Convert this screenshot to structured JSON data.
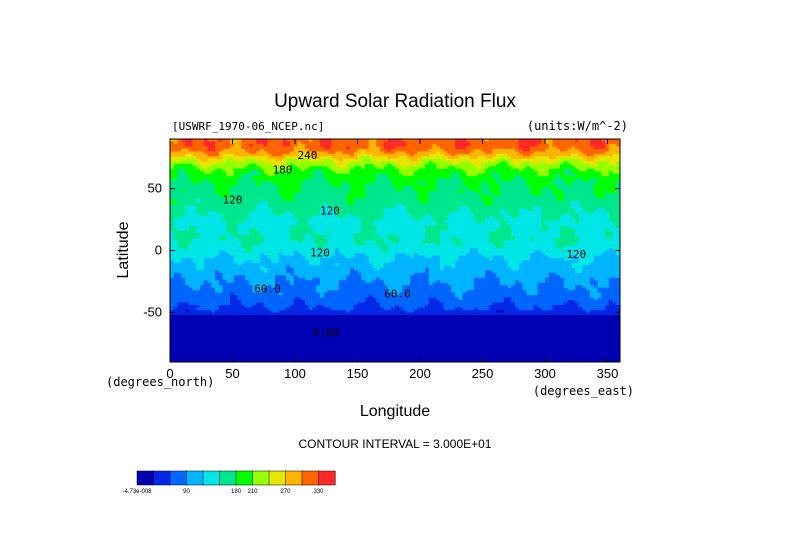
{
  "chart_data": {
    "type": "heatmap",
    "title": "Upward Solar Radiation Flux",
    "file_label": "[USWRF_1970-06_NCEP.nc]",
    "units_label": "(units:W/m^-2)",
    "xlabel": "Longitude",
    "ylabel": "Latitude",
    "x_units": "(degrees_east)",
    "y_units": "(degrees_north)",
    "xlim": [
      0,
      360
    ],
    "ylim": [
      -90,
      90
    ],
    "x_ticks": [
      "0",
      "50",
      "100",
      "150",
      "200",
      "250",
      "300",
      "350"
    ],
    "y_ticks": [
      "50",
      "0",
      "-50"
    ],
    "contour_interval": "CONTOUR INTERVAL = 3.000E+01",
    "contour_labels": [
      {
        "text": "240",
        "lon": 110,
        "lat": 74
      },
      {
        "text": "180",
        "lon": 90,
        "lat": 62
      },
      {
        "text": "120",
        "lon": 50,
        "lat": 38
      },
      {
        "text": "120",
        "lon": 128,
        "lat": 29
      },
      {
        "text": "120",
        "lon": 120,
        "lat": -5
      },
      {
        "text": "120",
        "lon": 325,
        "lat": -6
      },
      {
        "text": "60.0",
        "lon": 78,
        "lat": -34
      },
      {
        "text": "60.0",
        "lon": 182,
        "lat": -38
      },
      {
        "text": "0.00",
        "lon": 125,
        "lat": -69
      }
    ],
    "color_bar": {
      "colors": [
        "#0000b4",
        "#0028e6",
        "#0066ff",
        "#00b4ff",
        "#00e6e6",
        "#00e68c",
        "#00ff00",
        "#96ff00",
        "#e6e600",
        "#ffb400",
        "#ff6400",
        "#ff2828"
      ],
      "tick_labels": [
        "-4.73e-008",
        "90",
        "180",
        "210",
        "270",
        "330"
      ],
      "tick_values": [
        0,
        90,
        180,
        210,
        270,
        330
      ],
      "range": [
        0,
        360
      ]
    },
    "latitude_profile": [
      {
        "lat": -90,
        "value": 15
      },
      {
        "lat": -70,
        "value": 15
      },
      {
        "lat": -68,
        "value": 25
      },
      {
        "lat": -52,
        "value": 25
      },
      {
        "lat": -48,
        "value": 55
      },
      {
        "lat": -38,
        "value": 75
      },
      {
        "lat": -22,
        "value": 95
      },
      {
        "lat": -14,
        "value": 108
      },
      {
        "lat": -6,
        "value": 118
      },
      {
        "lat": 0,
        "value": 135
      },
      {
        "lat": 10,
        "value": 150
      },
      {
        "lat": 22,
        "value": 140
      },
      {
        "lat": 32,
        "value": 155
      },
      {
        "lat": 42,
        "value": 170
      },
      {
        "lat": 55,
        "value": 180
      },
      {
        "lat": 64,
        "value": 200
      },
      {
        "lat": 72,
        "value": 240
      },
      {
        "lat": 78,
        "value": 290
      },
      {
        "lat": 84,
        "value": 320
      },
      {
        "lat": 90,
        "value": 320
      }
    ]
  }
}
